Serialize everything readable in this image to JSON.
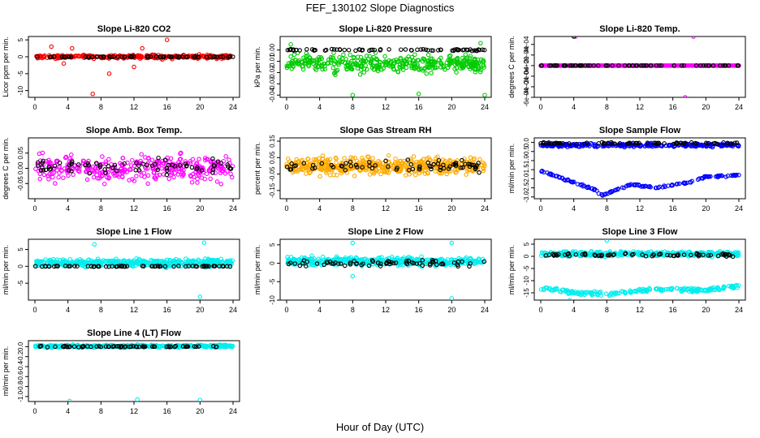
{
  "figure": {
    "title": "FEF_130102  Slope Diagnostics",
    "xlabel": "Hour of Day (UTC)"
  },
  "chart_data": [
    {
      "type": "scatter",
      "title": "Slope Li-820 CO2",
      "ylabel": "Licor ppm per min.",
      "xlim": [
        0,
        24
      ],
      "xticks": [
        "0",
        "4",
        "8",
        "12",
        "16",
        "20",
        "24"
      ],
      "ylim": [
        -12,
        6
      ],
      "yticks": [
        "-10",
        "-5",
        "0",
        "5"
      ],
      "ytick_values": [
        -10,
        -5,
        0,
        5
      ],
      "series": [
        {
          "color": "#ff0000",
          "n": 300,
          "base": 0,
          "spread": 0.9,
          "outliers": [
            [
              2,
              3
            ],
            [
              4.5,
              2.5
            ],
            [
              7,
              -11
            ],
            [
              9,
              -5
            ],
            [
              12,
              -3
            ],
            [
              16,
              5
            ],
            [
              13,
              2.5
            ],
            [
              3.5,
              -2
            ]
          ]
        },
        {
          "color": "#000000",
          "n": 70,
          "base": 0,
          "spread": 0.15
        }
      ]
    },
    {
      "type": "scatter",
      "title": "Slope Li-820 Pressure",
      "ylabel": "kPa per min.",
      "xlim": [
        0,
        24
      ],
      "xticks": [
        "0",
        "4",
        "8",
        "12",
        "16",
        "20",
        "24"
      ],
      "ylim": [
        -0.042,
        0.012
      ],
      "yticks": [
        "-0.04",
        "-0.03",
        "-0.02",
        "-0.01",
        "0.00"
      ],
      "ytick_values": [
        -0.04,
        -0.03,
        -0.02,
        -0.01,
        0.0
      ],
      "series": [
        {
          "color": "#00cc00",
          "n": 400,
          "base": -0.012,
          "spread": 0.012,
          "outliers": [
            [
              8,
              -0.04
            ],
            [
              16,
              -0.039
            ],
            [
              24,
              -0.04
            ],
            [
              23.5,
              0.006
            ],
            [
              0.5,
              0.005
            ]
          ]
        },
        {
          "color": "#000000",
          "n": 70,
          "base": 0.0,
          "spread": 0.0015
        }
      ]
    },
    {
      "type": "scatter",
      "title": "Slope Li-820 Temp.",
      "ylabel": "degrees C per min.",
      "xlim": [
        0,
        24
      ],
      "xticks": [
        "0",
        "4",
        "8",
        "12",
        "16",
        "20",
        "24"
      ],
      "ylim": [
        -0.0006,
        0.00055
      ],
      "yticks": [
        "-6e-04",
        "-4e-04",
        "-2e-04",
        "0e+00",
        "2e-04",
        "4e-04"
      ],
      "ytick_values": [
        -0.0006,
        -0.0004,
        -0.0002,
        0.0,
        0.0002,
        0.0004
      ],
      "series": [
        {
          "color": "#ff00ff",
          "n": 200,
          "base": 0,
          "spread": 0,
          "outliers": [
            [
              4.2,
              0.00055
            ],
            [
              18.5,
              0.00055
            ],
            [
              17.5,
              -0.0006
            ],
            [
              0.2,
              0.0
            ]
          ]
        },
        {
          "color": "#000000",
          "n": 70,
          "base": 0,
          "spread": 0,
          "outliers": [
            [
              4,
              0.00055
            ]
          ]
        }
      ]
    },
    {
      "type": "scatter",
      "title": "Slope Amb. Box Temp.",
      "ylabel": "degrees C per min.",
      "xlim": [
        0,
        24
      ],
      "xticks": [
        "0",
        "4",
        "8",
        "12",
        "16",
        "20",
        "24"
      ],
      "ylim": [
        -0.1,
        0.1
      ],
      "yticks": [
        "-0.05",
        "0.00",
        "0.05"
      ],
      "ytick_values": [
        -0.05,
        0.0,
        0.05
      ],
      "series": [
        {
          "color": "#ff00ff",
          "n": 350,
          "base": 0,
          "spread": 0.07
        },
        {
          "color": "#000000",
          "n": 70,
          "base": 0.005,
          "spread": 0.04
        }
      ]
    },
    {
      "type": "scatter",
      "title": "Slope Gas Stream RH",
      "ylabel": "percent per min.",
      "xlim": [
        0,
        24
      ],
      "xticks": [
        "0",
        "4",
        "8",
        "12",
        "16",
        "20",
        "24"
      ],
      "ylim": [
        -0.2,
        0.17
      ],
      "yticks": [
        "-0.15",
        "-0.05",
        "0.05",
        "0.15"
      ],
      "ytick_values": [
        -0.15,
        -0.05,
        0.05,
        0.15
      ],
      "series": [
        {
          "color": "#ffaa00",
          "n": 500,
          "base": 0,
          "spread": 0.08
        },
        {
          "color": "#000000",
          "n": 70,
          "base": 0,
          "spread": 0.06
        }
      ]
    },
    {
      "type": "scatter",
      "title": "Slope Sample Flow",
      "ylabel": "ml/min per min.",
      "xlim": [
        0,
        24
      ],
      "xticks": [
        "0",
        "4",
        "8",
        "12",
        "16",
        "20",
        "24"
      ],
      "ylim": [
        -3.1,
        0.25
      ],
      "yticks": [
        "-3.0",
        "-2.5",
        "-2.0",
        "-1.5",
        "-1.0",
        "-0.5",
        "0.0"
      ],
      "ytick_values": [
        -3.0,
        -2.5,
        -2.0,
        -1.5,
        -1.0,
        -0.5,
        0.0
      ],
      "series": [
        {
          "color": "#0000ff",
          "n": 300,
          "base": -0.15,
          "spread": 0.15
        },
        {
          "color": "#0000ff",
          "n": 150,
          "trend": [
            [
              0.2,
              -1.6
            ],
            [
              4,
              -2.2
            ],
            [
              6.5,
              -2.6
            ],
            [
              7.5,
              -2.9
            ],
            [
              11,
              -2.3
            ],
            [
              14,
              -2.5
            ],
            [
              18,
              -2.2
            ],
            [
              20,
              -1.9
            ],
            [
              24,
              -1.8
            ]
          ],
          "spread": 0.08
        },
        {
          "color": "#000000",
          "n": 70,
          "base": -0.05,
          "spread": 0.08
        }
      ]
    },
    {
      "type": "scatter",
      "title": "Slope Line 1 Flow",
      "ylabel": "ml/min per min.",
      "xlim": [
        0,
        24
      ],
      "xticks": [
        "0",
        "4",
        "8",
        "12",
        "16",
        "20",
        "24"
      ],
      "ylim": [
        -10,
        8
      ],
      "yticks": [
        "-5",
        "0",
        "5"
      ],
      "ytick_values": [
        -5,
        0,
        5
      ],
      "series": [
        {
          "color": "#00eeee",
          "n": 500,
          "base": 1,
          "spread": 1.8,
          "outliers": [
            [
              20,
              -9
            ],
            [
              20.5,
              7
            ],
            [
              7.2,
              6.5
            ]
          ]
        },
        {
          "color": "#000000",
          "n": 70,
          "base": 0,
          "spread": 0.2
        }
      ]
    },
    {
      "type": "scatter",
      "title": "Slope Line 2 Flow",
      "ylabel": "ml/min per min.",
      "xlim": [
        0,
        24
      ],
      "xticks": [
        "0",
        "4",
        "8",
        "12",
        "16",
        "20",
        "24"
      ],
      "ylim": [
        -10,
        6.5
      ],
      "yticks": [
        "-10",
        "-5",
        "0",
        "5"
      ],
      "ytick_values": [
        -10,
        -5,
        0,
        5
      ],
      "series": [
        {
          "color": "#00eeee",
          "n": 450,
          "base": 0.5,
          "spread": 1.8,
          "outliers": [
            [
              8,
              -3.5
            ],
            [
              20,
              -9.5
            ],
            [
              20,
              5.5
            ],
            [
              8,
              5.5
            ]
          ]
        },
        {
          "color": "#000000",
          "n": 70,
          "base": 0,
          "spread": 1.2
        }
      ]
    },
    {
      "type": "scatter",
      "title": "Slope Line 3 Flow",
      "ylabel": "ml/min per min.",
      "xlim": [
        0,
        24
      ],
      "xticks": [
        "0",
        "4",
        "8",
        "12",
        "16",
        "20",
        "24"
      ],
      "ylim": [
        -18,
        7
      ],
      "yticks": [
        "-15",
        "-10",
        "-5",
        "0",
        "5"
      ],
      "ytick_values": [
        -15,
        -10,
        -5,
        0,
        5
      ],
      "series": [
        {
          "color": "#00eeee",
          "n": 400,
          "base": 1,
          "spread": 1.6
        },
        {
          "color": "#00eeee",
          "n": 200,
          "trend": [
            [
              0.5,
              -13
            ],
            [
              4,
              -15
            ],
            [
              8,
              -15.5
            ],
            [
              12,
              -14
            ],
            [
              16,
              -13.5
            ],
            [
              20,
              -14
            ],
            [
              24,
              -12
            ]
          ],
          "spread": 1.3,
          "outliers": [
            [
              3.5,
              -18
            ],
            [
              8,
              6.5
            ]
          ]
        },
        {
          "color": "#000000",
          "n": 70,
          "base": 0.5,
          "spread": 1.1
        }
      ]
    },
    {
      "type": "scatter",
      "title": "Slope Line 4 (LT) Flow",
      "ylabel": "ml/min per min.",
      "xlim": [
        0,
        24
      ],
      "xticks": [
        "0",
        "4",
        "8",
        "12",
        "16",
        "20",
        "24"
      ],
      "ylim": [
        -1.1,
        0.12
      ],
      "yticks": [
        "-1.0",
        "-0.8",
        "-0.6",
        "-0.4",
        "-0.2",
        "0.0"
      ],
      "ytick_values": [
        -1.0,
        -0.8,
        -0.6,
        -0.4,
        -0.2,
        0.0
      ],
      "series": [
        {
          "color": "#00eeee",
          "n": 450,
          "base": 0.01,
          "spread": 0.04,
          "outliers": [
            [
              4.2,
              -1.09
            ],
            [
              12.4,
              -1.06
            ],
            [
              20,
              -1.07
            ]
          ]
        },
        {
          "color": "#000000",
          "n": 70,
          "base": 0.0,
          "spread": 0.02
        }
      ]
    }
  ]
}
